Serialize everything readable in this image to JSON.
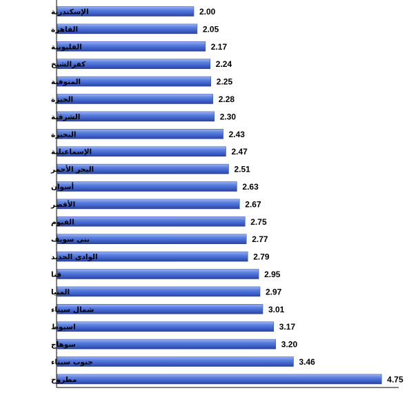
{
  "chart_data": {
    "type": "bar",
    "orientation": "horizontal",
    "categories": [
      "الإسكندرية",
      "القاهرة",
      "القليوبية",
      "كفرالشيخ",
      "المنوفية",
      "الجيزة",
      "الشرقية",
      "البحيرة",
      "الإسماعيلية",
      "البحر الأحمر",
      "أسوان",
      "الأقصر",
      "الفيوم",
      "بنى سويف",
      "الوادى الجديد",
      "قنا",
      "المنيا",
      "شمال سيناء",
      "اسيوط",
      "سوهاج",
      "جنوب سيناء",
      "مطروح"
    ],
    "values": [
      2.0,
      2.05,
      2.17,
      2.24,
      2.25,
      2.28,
      2.3,
      2.43,
      2.47,
      2.51,
      2.63,
      2.67,
      2.75,
      2.77,
      2.79,
      2.95,
      2.97,
      3.01,
      3.17,
      3.2,
      3.46,
      4.75
    ],
    "value_labels": [
      "2.00",
      "2.05",
      "2.17",
      "2.24",
      "2.25",
      "2.28",
      "2.30",
      "2.43",
      "2.47",
      "2.51",
      "2.63",
      "2.67",
      "2.75",
      "2.77",
      "2.79",
      "2.95",
      "2.97",
      "3.01",
      "3.17",
      "3.20",
      "3.46",
      "4.75"
    ],
    "title": "",
    "xlabel": "",
    "ylabel": "",
    "xlim": [
      0,
      5
    ],
    "grid": false,
    "legend": "none",
    "bar_color": "#4a6fd4",
    "axis_color": "#000000"
  }
}
